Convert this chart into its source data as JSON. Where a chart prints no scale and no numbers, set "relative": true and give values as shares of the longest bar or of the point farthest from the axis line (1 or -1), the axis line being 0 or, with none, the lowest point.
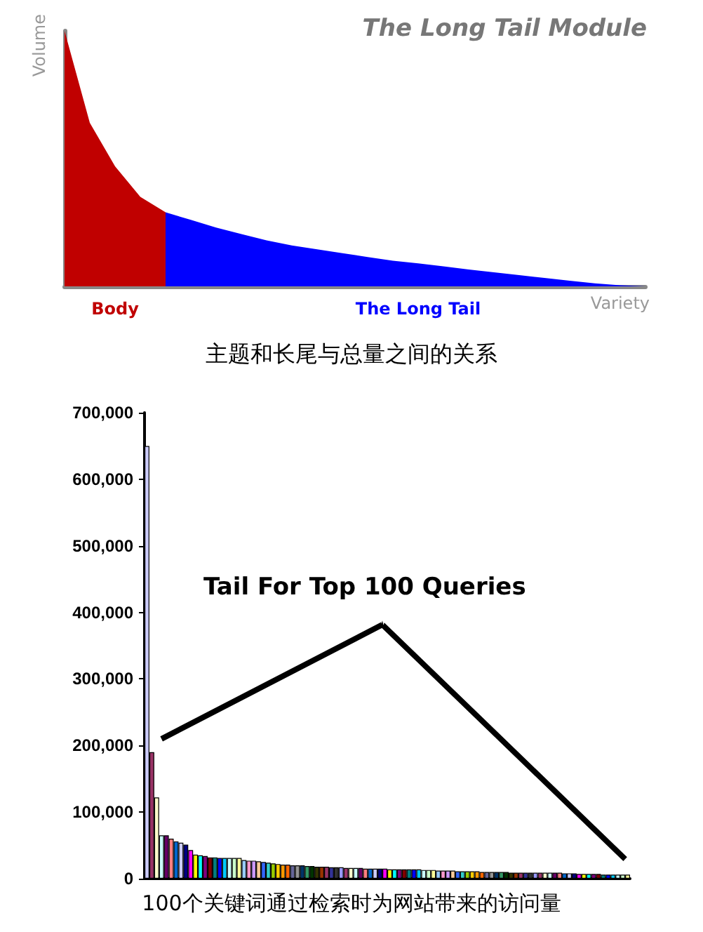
{
  "chart_data": [
    {
      "type": "area",
      "title": "The Long Tail Module",
      "xlabel": "Variety",
      "ylabel": "Volume",
      "relative": true,
      "categories": [
        null,
        null,
        null,
        null,
        null,
        null,
        null,
        null,
        null,
        null,
        null,
        null,
        null,
        null,
        null,
        null,
        null,
        null,
        null,
        null,
        null,
        null,
        null,
        null
      ],
      "series": [
        {
          "name": "Body",
          "color": "#c00000",
          "values": [
            1.0,
            0.64,
            0.47,
            0.35,
            0.29,
            null,
            null,
            null,
            null,
            null,
            null,
            null,
            null,
            null,
            null,
            null,
            null,
            null,
            null,
            null,
            null,
            null,
            null,
            null
          ]
        },
        {
          "name": "The Long Tail",
          "color": "#0000ff",
          "values": [
            null,
            null,
            null,
            null,
            0.29,
            0.26,
            0.23,
            0.205,
            0.18,
            0.16,
            0.145,
            0.13,
            0.115,
            0.1,
            0.09,
            0.078,
            0.066,
            0.055,
            0.044,
            0.033,
            0.022,
            0.012,
            0.004,
            0
          ]
        }
      ],
      "annotations": [
        "主题和长尾与总量之间的关系"
      ]
    },
    {
      "type": "bar",
      "title": "Tail For Top 100 Queries",
      "ylim": [
        0,
        700000
      ],
      "yticks": [
        0,
        {
          "value": 100000,
          "label": "100,000"
        },
        {
          "value": 200000,
          "label": "200,000"
        },
        {
          "value": 300000,
          "label": "300,000"
        },
        {
          "value": 400000,
          "label": "400,000"
        },
        {
          "value": 500000,
          "label": "500,000"
        },
        {
          "value": 600000,
          "label": "600,000"
        },
        {
          "value": 700000,
          "label": "700,000"
        }
      ],
      "grid": false,
      "categories": [
        null,
        null,
        null,
        null,
        null,
        null,
        null,
        null,
        null,
        null,
        null,
        null,
        null,
        null,
        null,
        null,
        null,
        null,
        null,
        null,
        null,
        null,
        null,
        null,
        null,
        null,
        null,
        null,
        null,
        null,
        null,
        null,
        null,
        null,
        null,
        null,
        null,
        null,
        null,
        null,
        null,
        null,
        null,
        null,
        null,
        null,
        null,
        null,
        null,
        null,
        null,
        null,
        null,
        null,
        null,
        null,
        null,
        null,
        null,
        null,
        null,
        null,
        null,
        null,
        null,
        null,
        null,
        null,
        null,
        null,
        null,
        null,
        null,
        null,
        null,
        null,
        null,
        null,
        null,
        null,
        null,
        null,
        null,
        null,
        null,
        null,
        null,
        null,
        null,
        null,
        null,
        null,
        null,
        null,
        null,
        null,
        null,
        null,
        null,
        null
      ],
      "values": [
        650000,
        190000,
        122000,
        65000,
        65000,
        60000,
        56000,
        54000,
        51000,
        43000,
        36000,
        35000,
        34000,
        32000,
        32000,
        31000,
        31000,
        31000,
        31000,
        31000,
        28000,
        27000,
        27000,
        26000,
        25000,
        24000,
        23000,
        22000,
        21000,
        21000,
        20000,
        20000,
        20000,
        19000,
        19000,
        18000,
        18000,
        18000,
        17000,
        17000,
        17000,
        16000,
        16000,
        16000,
        16000,
        15000,
        15000,
        15000,
        15000,
        15000,
        14000,
        14000,
        14000,
        14000,
        14000,
        14000,
        14000,
        13000,
        13000,
        13000,
        12000,
        12000,
        12000,
        12000,
        11000,
        11000,
        11000,
        11000,
        11000,
        10000,
        10000,
        10000,
        10000,
        10000,
        10000,
        9000,
        9000,
        9000,
        9000,
        9000,
        9000,
        9000,
        9000,
        9000,
        9000,
        9000,
        8000,
        8000,
        8000,
        7000,
        7000,
        7000,
        7000,
        7000,
        6000,
        6000,
        6000,
        6000,
        6000,
        6000
      ],
      "colors": [
        "#ccccff",
        "#993366",
        "#ffffcc",
        "#ccffff",
        "#660066",
        "#ff8080",
        "#0066cc",
        "#ccccff",
        "#000080",
        "#ff00ff",
        "#ffff00",
        "#00ffff",
        "#800080",
        "#800000",
        "#008080",
        "#0000ff",
        "#00ccff",
        "#ccffff",
        "#ccffcc",
        "#ffff99",
        "#99ccff",
        "#ff99cc",
        "#cc99ff",
        "#ffcc99",
        "#3366ff",
        "#33cccc",
        "#99cc00",
        "#ffcc00",
        "#ff9900",
        "#ff6600",
        "#666699",
        "#969696",
        "#003366",
        "#339966",
        "#003300",
        "#333300",
        "#993300",
        "#993366",
        "#333399",
        "#333333",
        "#9999ff",
        "#993366",
        "#ffffcc",
        "#ccffff",
        "#660066",
        "#ff8080",
        "#0066cc",
        "#ccccff",
        "#000080",
        "#ff00ff",
        "#ffff00",
        "#00ffff",
        "#800080",
        "#800000",
        "#008080",
        "#0000ff",
        "#00ccff",
        "#ccffff",
        "#ccffcc",
        "#ffff99",
        "#99ccff",
        "#ff99cc",
        "#cc99ff",
        "#ffcc99",
        "#3366ff",
        "#33cccc",
        "#99cc00",
        "#ffcc00",
        "#ff9900",
        "#ff6600",
        "#666699",
        "#969696",
        "#003366",
        "#339966",
        "#003300",
        "#333300",
        "#993300",
        "#993366",
        "#333399",
        "#333333",
        "#9999ff",
        "#993366",
        "#ffffcc",
        "#ccffff",
        "#660066",
        "#ff8080",
        "#0066cc",
        "#ccccff",
        "#000080",
        "#ff00ff",
        "#ffff00",
        "#00ffff",
        "#800080",
        "#800000",
        "#008080",
        "#0000ff",
        "#00ccff",
        "#ccffff",
        "#ccffcc",
        "#ffff99"
      ],
      "annotations": [
        "100个关键词通过检索时为网站带来的访问量"
      ]
    }
  ]
}
